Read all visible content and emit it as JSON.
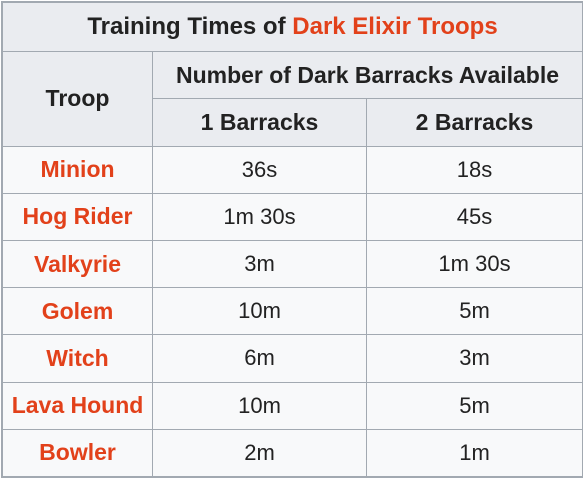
{
  "table": {
    "title_prefix": "Training Times of ",
    "title_accent": "Dark Elixir Troops",
    "troop_header": "Troop",
    "group_header": "Number of Dark Barracks Available",
    "columns": [
      "1 Barracks",
      "2 Barracks"
    ],
    "accent_color": "#e2411a",
    "rows": [
      {
        "troop": "Minion",
        "one": "36s",
        "two": "18s"
      },
      {
        "troop": "Hog Rider",
        "one": "1m 30s",
        "two": "45s"
      },
      {
        "troop": "Valkyrie",
        "one": "3m",
        "two": "1m 30s"
      },
      {
        "troop": "Golem",
        "one": "10m",
        "two": "5m"
      },
      {
        "troop": "Witch",
        "one": "6m",
        "two": "3m"
      },
      {
        "troop": "Lava Hound",
        "one": "10m",
        "two": "5m"
      },
      {
        "troop": "Bowler",
        "one": "2m",
        "two": "1m"
      }
    ]
  }
}
